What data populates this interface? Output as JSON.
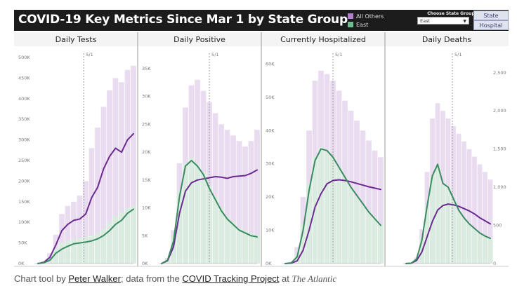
{
  "header": {
    "title": "COVID-19 Key Metrics Since Mar 1 by State Group",
    "legend": [
      {
        "label": "All Others",
        "color": "#b57fcf"
      },
      {
        "label": "East",
        "color": "#6dbf8b"
      }
    ],
    "chooser_label": "Choose State Group",
    "chooser_value": "East",
    "buttons": [
      "State",
      "Hospital"
    ]
  },
  "caption": {
    "prefix": "Chart tool by ",
    "author": "Peter Walker",
    "middle": "; data from the ",
    "project": "COVID Tracking Project",
    "at": " at ",
    "publication": "The Atlantic"
  },
  "colors": {
    "purple_line": "#6a2a8e",
    "green_line": "#3b8a62",
    "purple_bar": "#e9dbf0",
    "green_bar": "#d9ecdf",
    "marker": "#888888"
  },
  "chart_data": [
    {
      "type": "line",
      "title": "Daily Tests",
      "marker_label": "5/1",
      "marker_x": 0.48,
      "ylim": [
        0,
        500000
      ],
      "ticks": [
        0,
        50000,
        100000,
        150000,
        200000,
        250000,
        300000,
        350000,
        400000,
        450000,
        500000
      ],
      "tick_labels": [
        "0K",
        "50K",
        "100K",
        "150K",
        "200K",
        "250K",
        "300K",
        "350K",
        "400K",
        "450K",
        "500K"
      ],
      "tick_side": "left",
      "series": [
        {
          "name": "All Others",
          "values": [
            0,
            3000,
            15000,
            45000,
            80000,
            95000,
            105000,
            108000,
            120000,
            160000,
            185000,
            230000,
            260000,
            280000,
            270000,
            300000,
            315000
          ]
        },
        {
          "name": "East",
          "values": [
            0,
            2000,
            8000,
            25000,
            35000,
            42000,
            48000,
            50000,
            52000,
            55000,
            60000,
            68000,
            80000,
            95000,
            105000,
            122000,
            132000
          ]
        }
      ],
      "bars_all": [
        0,
        5000,
        25000,
        70000,
        120000,
        140000,
        150000,
        165000,
        200000,
        280000,
        330000,
        380000,
        420000,
        450000,
        440000,
        470000,
        480000
      ],
      "bars_east": [
        0,
        3000,
        12000,
        38000,
        50000,
        55000,
        60000,
        62000,
        65000,
        68000,
        75000,
        85000,
        100000,
        115000,
        125000,
        135000,
        140000
      ]
    },
    {
      "type": "line",
      "title": "Daily Positive",
      "marker_label": "5/1",
      "marker_x": 0.5,
      "ylim": [
        0,
        37000
      ],
      "ticks": [
        0,
        5000,
        10000,
        15000,
        20000,
        25000,
        30000,
        35000
      ],
      "tick_labels": [
        "0K",
        "5K",
        "10K",
        "15K",
        "20K",
        "25K",
        "30K",
        "35K"
      ],
      "tick_side": "left",
      "series": [
        {
          "name": "All Others",
          "values": [
            0,
            500,
            3000,
            9000,
            13000,
            14500,
            15000,
            15200,
            15400,
            15600,
            15500,
            15300,
            15600,
            15700,
            15800,
            16200,
            16800
          ]
        },
        {
          "name": "East",
          "values": [
            0,
            600,
            4000,
            12000,
            17500,
            18500,
            17500,
            16000,
            13500,
            11500,
            9500,
            8000,
            7000,
            6000,
            5500,
            5000,
            4800
          ]
        }
      ],
      "bars_all": [
        0,
        1000,
        6000,
        18000,
        28000,
        32000,
        33000,
        31000,
        29000,
        27000,
        25000,
        24000,
        23000,
        22000,
        21000,
        22000,
        24000
      ],
      "bars_east": [
        0,
        800,
        5000,
        13000,
        18000,
        19000,
        18000,
        16500,
        14000,
        12000,
        10000,
        8500,
        7500,
        6500,
        6000,
        5500,
        5200
      ]
    },
    {
      "type": "line",
      "title": "Currently Hospitalized",
      "marker_label": "5/1",
      "marker_x": 0.5,
      "ylim": [
        0,
        62000
      ],
      "ticks": [
        0,
        10000,
        20000,
        30000,
        40000,
        50000,
        60000
      ],
      "tick_labels": [
        "0K",
        "10K",
        "20K",
        "30K",
        "40K",
        "50K",
        "60K"
      ],
      "tick_side": "left",
      "series": [
        {
          "name": "All Others",
          "values": [
            0,
            100,
            800,
            4000,
            10000,
            17000,
            21000,
            24000,
            25000,
            25200,
            25000,
            24600,
            24100,
            23600,
            23100,
            22700,
            22300
          ]
        },
        {
          "name": "East",
          "values": [
            0,
            200,
            2000,
            10000,
            22000,
            31000,
            34500,
            34000,
            32000,
            29000,
            26000,
            23000,
            20500,
            18000,
            15500,
            13500,
            11500
          ]
        }
      ],
      "bars_all": [
        0,
        500,
        5000,
        20000,
        40000,
        55000,
        58000,
        57000,
        55000,
        52000,
        49000,
        46000,
        43000,
        40000,
        37000,
        34000,
        32000
      ],
      "bars_east": [
        0,
        300,
        3000,
        12000,
        24000,
        32000,
        35000,
        34000,
        32000,
        29000,
        26000,
        23000,
        20000,
        18000,
        16000,
        14000,
        12000
      ]
    },
    {
      "type": "line",
      "title": "Daily Deaths",
      "marker_label": "5/1",
      "marker_x": 0.55,
      "ylim": [
        0,
        2700
      ],
      "ticks": [
        0,
        500,
        1000,
        1500,
        2000,
        2500
      ],
      "tick_labels": [
        "0",
        "500",
        "1,000",
        "1,500",
        "2,000",
        "2,500"
      ],
      "tick_side": "right",
      "series": [
        {
          "name": "All Others",
          "values": [
            0,
            5,
            40,
            150,
            350,
            550,
            700,
            760,
            780,
            770,
            750,
            720,
            690,
            650,
            600,
            560,
            520
          ]
        },
        {
          "name": "East",
          "values": [
            0,
            5,
            60,
            300,
            750,
            1150,
            1300,
            1050,
            1000,
            850,
            700,
            600,
            520,
            460,
            400,
            360,
            330
          ]
        }
      ],
      "bars_all": [
        0,
        10,
        80,
        450,
        1200,
        1900,
        2100,
        2000,
        1900,
        1800,
        1700,
        1600,
        1500,
        1400,
        1300,
        1200,
        1100
      ],
      "bars_east": [
        0,
        8,
        60,
        300,
        750,
        1150,
        1300,
        1050,
        1000,
        850,
        700,
        600,
        520,
        460,
        400,
        360,
        330
      ]
    }
  ]
}
